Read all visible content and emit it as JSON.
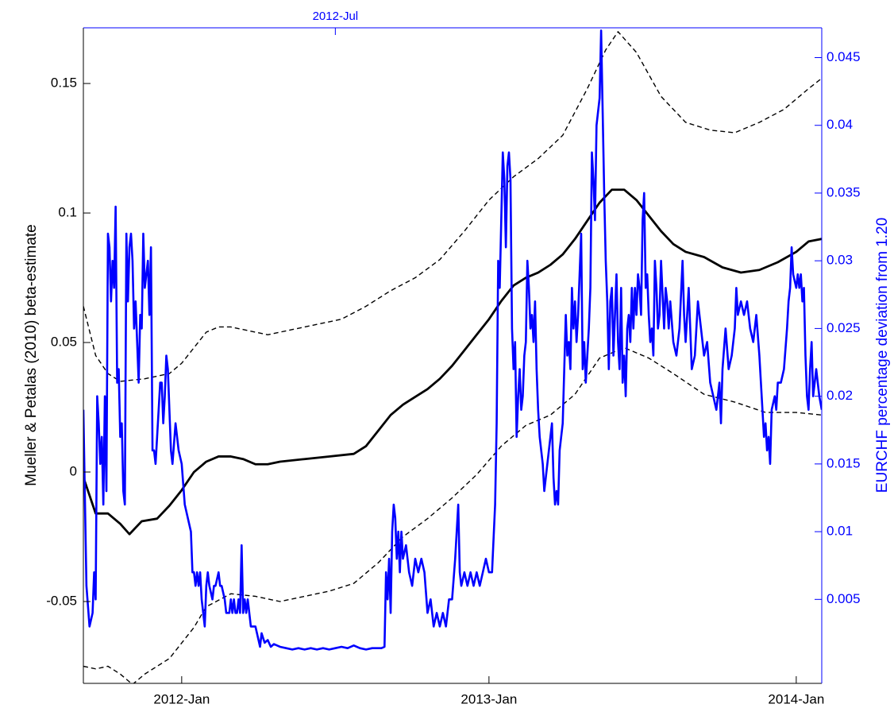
{
  "chart_data": {
    "type": "line",
    "ylabel": "Mueller & Petalas (2010) beta-estimate",
    "y2label": "EURCHF percentage deviation from 1.20",
    "xlim": [
      2011.68,
      2014.083
    ],
    "xticks": [
      {
        "value": 2012.0,
        "label": "2012-Jan"
      },
      {
        "value": 2013.0,
        "label": "2013-Jan"
      },
      {
        "value": 2014.0,
        "label": "2014-Jan"
      }
    ],
    "x2ticks": [
      {
        "value": 2012.5,
        "label": "2012-Jul"
      }
    ],
    "ylim": [
      -0.0816,
      0.1715
    ],
    "yticks": [
      -0.05,
      0,
      0.05,
      0.1,
      0.15
    ],
    "y2lim": [
      -0.0012,
      0.0472
    ],
    "y2ticks": [
      0.005,
      0.01,
      0.015,
      0.02,
      0.025,
      0.03,
      0.035,
      0.04,
      0.045
    ],
    "axis_color": "#000000",
    "axis2_color": "#0000ff",
    "series": [
      {
        "color": "#000000",
        "dash": false,
        "x": [
          2011.68,
          2011.72,
          2011.76,
          2011.8,
          2011.83,
          2011.87,
          2011.92,
          2011.96,
          2012.0,
          2012.04,
          2012.08,
          2012.12,
          2012.16,
          2012.2,
          2012.24,
          2012.28,
          2012.32,
          2012.4,
          2012.48,
          2012.56,
          2012.6,
          2012.64,
          2012.68,
          2012.72,
          2012.76,
          2012.8,
          2012.84,
          2012.88,
          2012.92,
          2012.96,
          2013.0,
          2013.04,
          2013.08,
          2013.12,
          2013.16,
          2013.2,
          2013.24,
          2013.28,
          2013.32,
          2013.36,
          2013.4,
          2013.44,
          2013.48,
          2013.52,
          2013.56,
          2013.6,
          2013.64,
          2013.7,
          2013.76,
          2013.82,
          2013.88,
          2013.94,
          2014.0,
          2014.04,
          2014.083
        ],
        "values": [
          -0.002,
          -0.016,
          -0.016,
          -0.02,
          -0.024,
          -0.019,
          -0.018,
          -0.013,
          -0.007,
          0.0,
          0.004,
          0.006,
          0.006,
          0.005,
          0.003,
          0.003,
          0.004,
          0.005,
          0.006,
          0.007,
          0.01,
          0.016,
          0.022,
          0.026,
          0.029,
          0.032,
          0.036,
          0.041,
          0.047,
          0.053,
          0.059,
          0.066,
          0.072,
          0.075,
          0.077,
          0.08,
          0.084,
          0.09,
          0.097,
          0.104,
          0.109,
          0.109,
          0.105,
          0.099,
          0.093,
          0.088,
          0.085,
          0.083,
          0.079,
          0.077,
          0.078,
          0.081,
          0.085,
          0.089,
          0.09
        ]
      },
      {
        "color": "#000000",
        "dash": true,
        "x": [
          2011.68,
          2011.72,
          2011.76,
          2011.8,
          2011.88,
          2011.96,
          2012.0,
          2012.04,
          2012.08,
          2012.12,
          2012.16,
          2012.2,
          2012.28,
          2012.36,
          2012.44,
          2012.52,
          2012.6,
          2012.68,
          2012.76,
          2012.84,
          2012.92,
          2013.0,
          2013.08,
          2013.16,
          2013.24,
          2013.32,
          2013.38,
          2013.42,
          2013.48,
          2013.56,
          2013.64,
          2013.72,
          2013.8,
          2013.88,
          2013.96,
          2014.04,
          2014.083
        ],
        "values": [
          0.064,
          0.045,
          0.038,
          0.035,
          0.036,
          0.038,
          0.042,
          0.048,
          0.054,
          0.056,
          0.056,
          0.055,
          0.053,
          0.055,
          0.057,
          0.059,
          0.064,
          0.07,
          0.075,
          0.082,
          0.093,
          0.105,
          0.114,
          0.121,
          0.13,
          0.148,
          0.163,
          0.17,
          0.162,
          0.145,
          0.135,
          0.132,
          0.131,
          0.135,
          0.14,
          0.148,
          0.152
        ]
      },
      {
        "color": "#000000",
        "dash": true,
        "x": [
          2011.68,
          2011.72,
          2011.76,
          2011.8,
          2011.84,
          2011.88,
          2011.96,
          2012.04,
          2012.08,
          2012.16,
          2012.24,
          2012.32,
          2012.4,
          2012.48,
          2012.56,
          2012.64,
          2012.72,
          2012.8,
          2012.88,
          2012.96,
          2013.04,
          2013.12,
          2013.2,
          2013.28,
          2013.36,
          2013.44,
          2013.52,
          2013.6,
          2013.7,
          2013.8,
          2013.9,
          2014.0,
          2014.083
        ],
        "values": [
          -0.075,
          -0.076,
          -0.075,
          -0.078,
          -0.082,
          -0.078,
          -0.072,
          -0.06,
          -0.052,
          -0.047,
          -0.048,
          -0.05,
          -0.048,
          -0.046,
          -0.043,
          -0.035,
          -0.025,
          -0.018,
          -0.01,
          -0.001,
          0.01,
          0.018,
          0.022,
          0.03,
          0.044,
          0.048,
          0.044,
          0.038,
          0.03,
          0.027,
          0.023,
          0.023,
          0.022
        ]
      },
      {
        "color": "#0000ff",
        "dash": false,
        "axis": "y2",
        "x": [
          2011.68,
          2011.69,
          2011.7,
          2011.71,
          2011.715,
          2011.72,
          2011.725,
          2011.73,
          2011.735,
          2011.74,
          2011.745,
          2011.75,
          2011.755,
          2011.76,
          2011.765,
          2011.77,
          2011.775,
          2011.78,
          2011.785,
          2011.79,
          2011.795,
          2011.8,
          2011.805,
          2011.81,
          2011.815,
          2011.82,
          2011.825,
          2011.83,
          2011.835,
          2011.84,
          2011.845,
          2011.85,
          2011.855,
          2011.86,
          2011.865,
          2011.87,
          2011.875,
          2011.88,
          2011.885,
          2011.89,
          2011.895,
          2011.9,
          2011.905,
          2011.91,
          2011.915,
          2011.92,
          2011.925,
          2011.93,
          2011.935,
          2011.94,
          2011.945,
          2011.95,
          2011.955,
          2011.96,
          2011.965,
          2011.97,
          2011.98,
          2011.99,
          2012.0,
          2012.01,
          2012.02,
          2012.03,
          2012.035,
          2012.04,
          2012.045,
          2012.05,
          2012.055,
          2012.06,
          2012.065,
          2012.07,
          2012.075,
          2012.08,
          2012.085,
          2012.09,
          2012.1,
          2012.105,
          2012.11,
          2012.12,
          2012.125,
          2012.13,
          2012.14,
          2012.145,
          2012.15,
          2012.155,
          2012.16,
          2012.165,
          2012.17,
          2012.175,
          2012.18,
          2012.185,
          2012.19,
          2012.195,
          2012.2,
          2012.205,
          2012.21,
          2012.215,
          2012.22,
          2012.225,
          2012.23,
          2012.24,
          2012.25,
          2012.255,
          2012.26,
          2012.27,
          2012.28,
          2012.29,
          2012.3,
          2012.32,
          2012.34,
          2012.36,
          2012.38,
          2012.4,
          2012.42,
          2012.44,
          2012.46,
          2012.48,
          2012.5,
          2012.52,
          2012.54,
          2012.56,
          2012.58,
          2012.6,
          2012.62,
          2012.65,
          2012.66,
          2012.665,
          2012.67,
          2012.675,
          2012.68,
          2012.685,
          2012.69,
          2012.695,
          2012.7,
          2012.705,
          2012.71,
          2012.715,
          2012.72,
          2012.73,
          2012.74,
          2012.75,
          2012.76,
          2012.77,
          2012.78,
          2012.79,
          2012.8,
          2012.81,
          2012.82,
          2012.83,
          2012.84,
          2012.85,
          2012.86,
          2012.87,
          2012.88,
          2012.89,
          2012.9,
          2012.905,
          2012.91,
          2012.92,
          2012.93,
          2012.94,
          2012.95,
          2012.96,
          2012.97,
          2012.98,
          2012.99,
          2013.0,
          2013.01,
          2013.02,
          2013.025,
          2013.03,
          2013.035,
          2013.04,
          2013.045,
          2013.05,
          2013.055,
          2013.06,
          2013.065,
          2013.07,
          2013.075,
          2013.08,
          2013.085,
          2013.09,
          2013.095,
          2013.1,
          2013.105,
          2013.11,
          2013.115,
          2013.12,
          2013.125,
          2013.13,
          2013.135,
          2013.14,
          2013.145,
          2013.15,
          2013.155,
          2013.16,
          2013.165,
          2013.17,
          2013.175,
          2013.18,
          2013.185,
          2013.19,
          2013.195,
          2013.2,
          2013.205,
          2013.21,
          2013.215,
          2013.22,
          2013.225,
          2013.23,
          2013.235,
          2013.24,
          2013.245,
          2013.25,
          2013.255,
          2013.26,
          2013.265,
          2013.27,
          2013.275,
          2013.28,
          2013.285,
          2013.29,
          2013.295,
          2013.3,
          2013.305,
          2013.31,
          2013.315,
          2013.32,
          2013.325,
          2013.33,
          2013.335,
          2013.34,
          2013.345,
          2013.35,
          2013.355,
          2013.36,
          2013.365,
          2013.37,
          2013.375,
          2013.38,
          2013.385,
          2013.39,
          2013.395,
          2013.4,
          2013.405,
          2013.41,
          2013.415,
          2013.42,
          2013.425,
          2013.43,
          2013.435,
          2013.44,
          2013.445,
          2013.45,
          2013.455,
          2013.46,
          2013.465,
          2013.47,
          2013.475,
          2013.48,
          2013.485,
          2013.49,
          2013.495,
          2013.5,
          2013.505,
          2013.51,
          2013.515,
          2013.52,
          2013.525,
          2013.53,
          2013.535,
          2013.54,
          2013.545,
          2013.55,
          2013.555,
          2013.56,
          2013.57,
          2013.575,
          2013.58,
          2013.585,
          2013.59,
          2013.6,
          2013.61,
          2013.62,
          2013.63,
          2013.635,
          2013.64,
          2013.65,
          2013.655,
          2013.66,
          2013.67,
          2013.68,
          2013.69,
          2013.7,
          2013.71,
          2013.72,
          2013.73,
          2013.74,
          2013.75,
          2013.755,
          2013.76,
          2013.77,
          2013.78,
          2013.79,
          2013.8,
          2013.805,
          2013.81,
          2013.82,
          2013.83,
          2013.84,
          2013.85,
          2013.86,
          2013.87,
          2013.88,
          2013.885,
          2013.89,
          2013.895,
          2013.9,
          2013.905,
          2013.91,
          2013.915,
          2013.92,
          2013.93,
          2013.935,
          2013.94,
          2013.95,
          2013.96,
          2013.97,
          2013.975,
          2013.98,
          2013.985,
          2013.99,
          2014.0,
          2014.005,
          2014.01,
          2014.015,
          2014.02,
          2014.025,
          2014.03,
          2014.035,
          2014.04,
          2014.045,
          2014.05,
          2014.055,
          2014.06,
          2014.065,
          2014.075,
          2014.083
        ],
        "values": [
          0.019,
          0.006,
          0.003,
          0.004,
          0.007,
          0.005,
          0.02,
          0.018,
          0.015,
          0.017,
          0.012,
          0.02,
          0.013,
          0.032,
          0.031,
          0.027,
          0.03,
          0.028,
          0.034,
          0.021,
          0.022,
          0.017,
          0.018,
          0.013,
          0.012,
          0.032,
          0.027,
          0.031,
          0.032,
          0.03,
          0.025,
          0.027,
          0.024,
          0.021,
          0.026,
          0.025,
          0.032,
          0.028,
          0.029,
          0.03,
          0.026,
          0.031,
          0.016,
          0.016,
          0.015,
          0.017,
          0.019,
          0.021,
          0.021,
          0.018,
          0.02,
          0.023,
          0.022,
          0.019,
          0.016,
          0.015,
          0.018,
          0.016,
          0.015,
          0.012,
          0.011,
          0.01,
          0.007,
          0.007,
          0.006,
          0.007,
          0.006,
          0.007,
          0.005,
          0.004,
          0.003,
          0.006,
          0.007,
          0.006,
          0.005,
          0.006,
          0.006,
          0.007,
          0.006,
          0.006,
          0.005,
          0.004,
          0.004,
          0.004,
          0.005,
          0.004,
          0.005,
          0.004,
          0.004,
          0.005,
          0.004,
          0.009,
          0.004,
          0.005,
          0.004,
          0.005,
          0.004,
          0.003,
          0.003,
          0.003,
          0.002,
          0.0015,
          0.0025,
          0.0018,
          0.002,
          0.0015,
          0.0017,
          0.0015,
          0.0014,
          0.0013,
          0.0014,
          0.0013,
          0.0014,
          0.0013,
          0.0014,
          0.0013,
          0.0014,
          0.0015,
          0.0014,
          0.0016,
          0.0014,
          0.0013,
          0.0014,
          0.0014,
          0.0015,
          0.007,
          0.005,
          0.008,
          0.004,
          0.01,
          0.012,
          0.011,
          0.008,
          0.01,
          0.007,
          0.01,
          0.008,
          0.009,
          0.007,
          0.006,
          0.008,
          0.007,
          0.008,
          0.007,
          0.004,
          0.005,
          0.003,
          0.004,
          0.003,
          0.004,
          0.003,
          0.005,
          0.005,
          0.008,
          0.012,
          0.007,
          0.006,
          0.007,
          0.006,
          0.007,
          0.006,
          0.007,
          0.006,
          0.007,
          0.008,
          0.007,
          0.007,
          0.012,
          0.018,
          0.03,
          0.028,
          0.033,
          0.038,
          0.036,
          0.031,
          0.037,
          0.038,
          0.036,
          0.025,
          0.022,
          0.024,
          0.017,
          0.02,
          0.022,
          0.019,
          0.02,
          0.023,
          0.024,
          0.03,
          0.028,
          0.025,
          0.026,
          0.024,
          0.027,
          0.022,
          0.019,
          0.017,
          0.016,
          0.015,
          0.013,
          0.014,
          0.015,
          0.016,
          0.017,
          0.018,
          0.014,
          0.012,
          0.013,
          0.012,
          0.016,
          0.017,
          0.018,
          0.022,
          0.026,
          0.023,
          0.024,
          0.022,
          0.028,
          0.025,
          0.027,
          0.024,
          0.026,
          0.029,
          0.032,
          0.022,
          0.024,
          0.021,
          0.023,
          0.025,
          0.028,
          0.038,
          0.036,
          0.033,
          0.04,
          0.041,
          0.042,
          0.047,
          0.041,
          0.035,
          0.03,
          0.027,
          0.022,
          0.027,
          0.028,
          0.023,
          0.026,
          0.029,
          0.024,
          0.022,
          0.028,
          0.021,
          0.023,
          0.02,
          0.025,
          0.026,
          0.024,
          0.028,
          0.025,
          0.028,
          0.026,
          0.029,
          0.028,
          0.026,
          0.033,
          0.035,
          0.028,
          0.029,
          0.026,
          0.024,
          0.025,
          0.023,
          0.03,
          0.028,
          0.025,
          0.026,
          0.03,
          0.025,
          0.028,
          0.027,
          0.025,
          0.027,
          0.024,
          0.023,
          0.025,
          0.03,
          0.026,
          0.024,
          0.028,
          0.025,
          0.022,
          0.023,
          0.027,
          0.025,
          0.023,
          0.024,
          0.021,
          0.02,
          0.019,
          0.021,
          0.018,
          0.022,
          0.025,
          0.022,
          0.023,
          0.025,
          0.028,
          0.026,
          0.027,
          0.026,
          0.027,
          0.025,
          0.024,
          0.026,
          0.023,
          0.021,
          0.019,
          0.017,
          0.018,
          0.016,
          0.017,
          0.015,
          0.019,
          0.02,
          0.019,
          0.021,
          0.021,
          0.022,
          0.025,
          0.027,
          0.028,
          0.031,
          0.029,
          0.028,
          0.029,
          0.028,
          0.029,
          0.027,
          0.028,
          0.023,
          0.02,
          0.019,
          0.022,
          0.024,
          0.02,
          0.021,
          0.022,
          0.02,
          0.019
        ]
      }
    ]
  }
}
